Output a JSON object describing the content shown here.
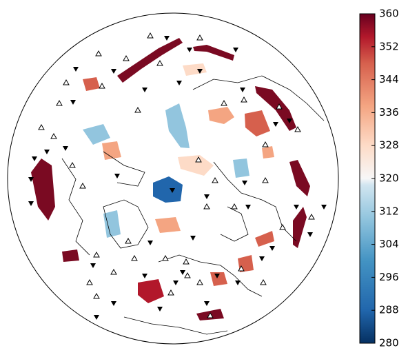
{
  "colorbar": {
    "lim": [
      280,
      360
    ],
    "ticks": [
      280,
      288,
      296,
      304,
      312,
      320,
      328,
      336,
      344,
      352,
      360
    ]
  }
}
